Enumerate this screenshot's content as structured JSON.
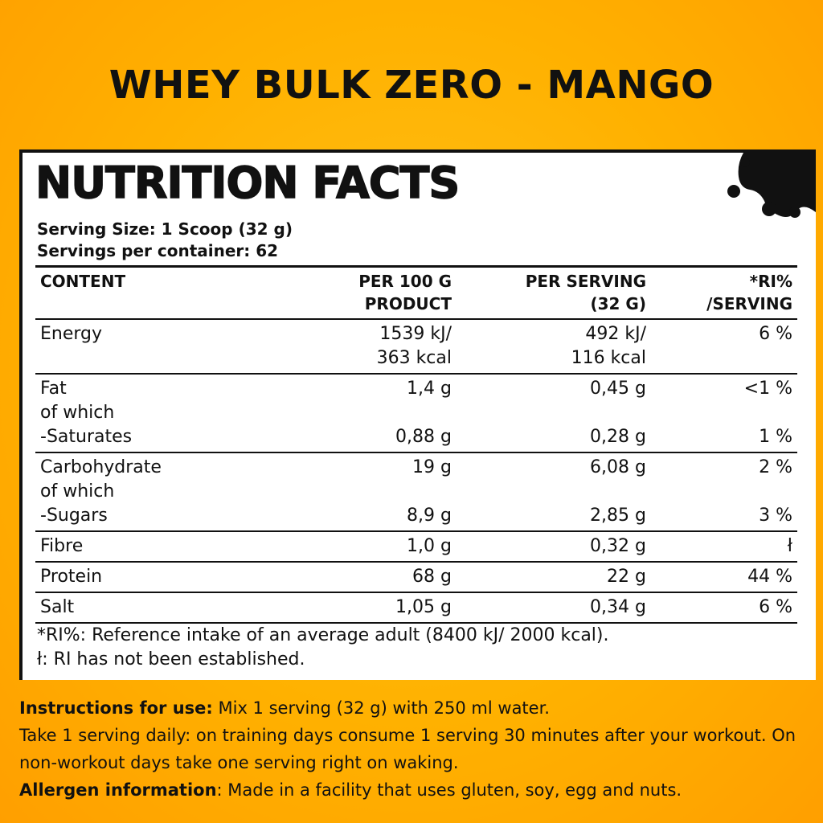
{
  "title": "WHEY BULK ZERO - MANGO",
  "panel": {
    "heading": "NUTRITION FACTS",
    "serving_size": "Serving Size: 1 Scoop (32 g)",
    "servings_per_container": "Servings per container: 62",
    "decoration_icon": "blob-circles-icon",
    "columns": {
      "content": "CONTENT",
      "per100_l1": "PER 100 G",
      "per100_l2": "PRODUCT",
      "perserv_l1": "PER SERVING",
      "perserv_l2": "(32 G)",
      "ri_l1": "*RI%",
      "ri_l2": "/SERVING"
    },
    "rows": [
      {
        "name": [
          "Energy",
          ""
        ],
        "per100": [
          "1539 kJ/",
          "363 kcal"
        ],
        "perserv": [
          "492 kJ/",
          "116 kcal"
        ],
        "ri": "6 %"
      },
      {
        "name": [
          "Fat",
          "of which",
          "-Saturates"
        ],
        "per100": [
          "1,4 g",
          "",
          "0,88 g"
        ],
        "perserv": [
          "0,45 g",
          "",
          "0,28 g"
        ],
        "ri": [
          "<1 %",
          "",
          "1 %"
        ]
      },
      {
        "name": [
          "Carbohydrate",
          "of which",
          "-Sugars"
        ],
        "per100": [
          "19 g",
          "",
          "8,9 g"
        ],
        "perserv": [
          "6,08 g",
          "",
          "2,85 g"
        ],
        "ri": [
          "2 %",
          "",
          "3 %"
        ]
      },
      {
        "name": "Fibre",
        "per100": "1,0 g",
        "perserv": "0,32 g",
        "ri": "ł"
      },
      {
        "name": "Protein",
        "per100": "68 g",
        "perserv": "22 g",
        "ri": "44 %"
      },
      {
        "name": "Salt",
        "per100": "1,05 g",
        "perserv": "0,34 g",
        "ri": "6 %"
      }
    ],
    "footnote_ri": "*RI%: Reference intake of an average adult (8400 kJ/ 2000 kcal).",
    "footnote_l": "ł: RI has not been established."
  },
  "instructions": {
    "label": "Instructions for use:",
    "text1": " Mix 1 serving (32 g) with 250 ml water.",
    "text2": "Take 1 serving daily: on training days consume 1 serving 30 minutes after your workout. On non-workout days take one serving right on waking.",
    "allergen_label": "Allergen information",
    "allergen_text": ": Made in a facility that uses gluten, soy, egg and nuts."
  }
}
